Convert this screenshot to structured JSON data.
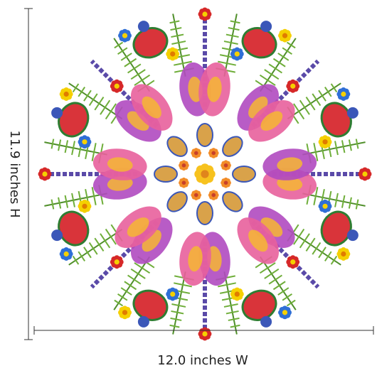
{
  "dimensions": {
    "height_label": "11.9 inches H",
    "width_label": "12.0 inches W"
  }
}
